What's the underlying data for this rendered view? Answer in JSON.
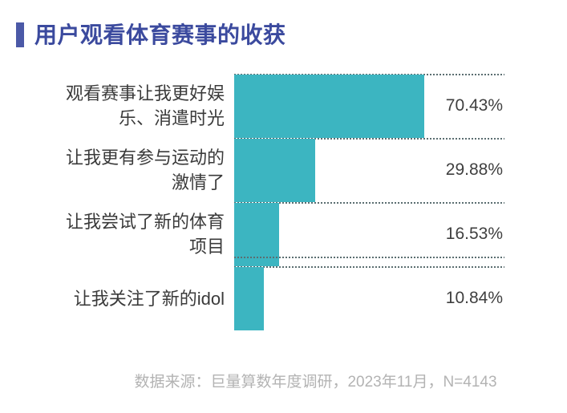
{
  "title": {
    "text": "用户观看体育赛事的收获"
  },
  "chart_data": {
    "type": "bar",
    "orientation": "horizontal",
    "title": "用户观看体育赛事的收获",
    "categories": [
      "观看赛事让我更好娱乐、消遣时光",
      "让我更有参与运动的激情了",
      "让我尝试了新的体育项目",
      "让我关注了新的idol"
    ],
    "values": [
      70.43,
      29.88,
      16.53,
      10.84
    ],
    "value_labels": [
      "70.43%",
      "29.88%",
      "16.53%",
      "10.84%"
    ],
    "xlabel": "",
    "ylabel": "",
    "xlim": [
      0,
      100
    ],
    "legend": "none",
    "grid": "dotted horizontal row separators",
    "bar_color": "#3CB5C1"
  },
  "footer": {
    "source_note": "数据来源：巨量算数年度调研，2023年11月，N=4143"
  },
  "colors": {
    "title_text": "#3B4A9E",
    "title_accent": "#4B59A7",
    "bar": "#3CB5C1",
    "label_text": "#3A3A3A",
    "value_text": "#3F3F3F",
    "gridline": "#5B6E71",
    "footer_text": "#B3B3B3",
    "background": "#FFFFFF"
  }
}
